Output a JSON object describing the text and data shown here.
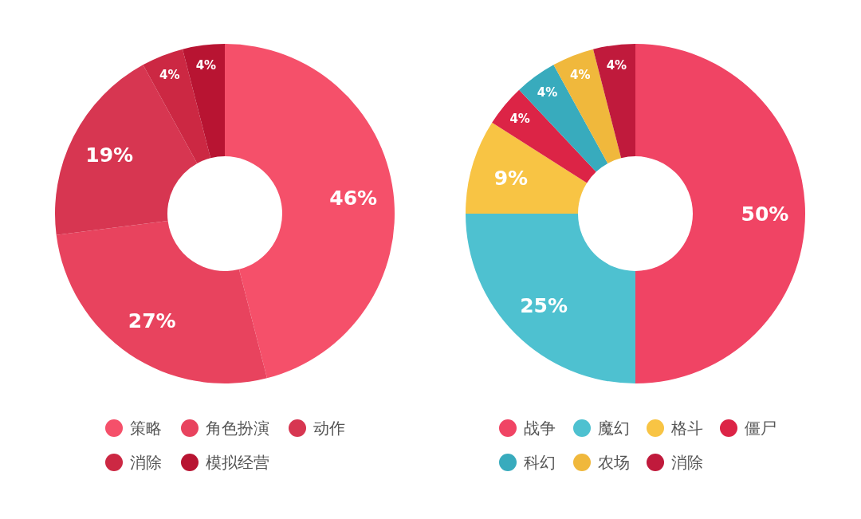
{
  "chart_data": [
    {
      "type": "donut",
      "categories": [
        "策略",
        "角色扮演",
        "动作",
        "消除",
        "模拟经营"
      ],
      "values": [
        46,
        27,
        19,
        4,
        4
      ],
      "value_labels": [
        "46%",
        "27%",
        "19%",
        "4%",
        "4%"
      ],
      "colors": [
        "#f5506a",
        "#e8435e",
        "#d73651",
        "#cc2843",
        "#b81432"
      ],
      "legend": "bottom"
    },
    {
      "type": "donut",
      "categories": [
        "战争",
        "魔幻",
        "格斗",
        "僵尸",
        "科幻",
        "农场",
        "消除"
      ],
      "values": [
        50,
        25,
        9,
        4,
        4,
        4,
        4
      ],
      "value_labels": [
        "50%",
        "25%",
        "9%",
        "4%",
        "4%",
        "4%",
        "4%"
      ],
      "colors": [
        "#f04464",
        "#4ec1d0",
        "#f8c444",
        "#dc2446",
        "#38abbd",
        "#f0b83c",
        "#c01a3c"
      ],
      "legend": "bottom"
    }
  ]
}
